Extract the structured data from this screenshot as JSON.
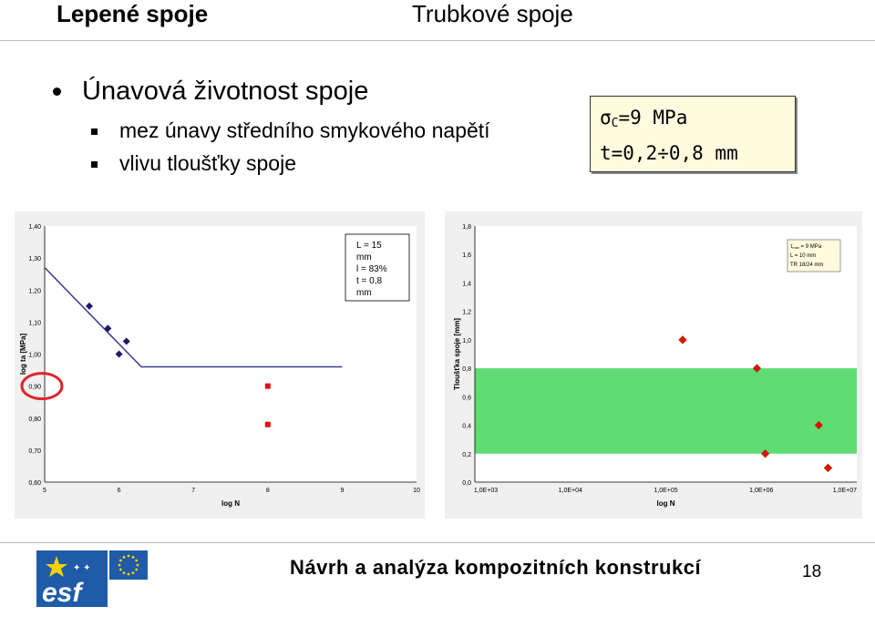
{
  "header": {
    "left": "Lepené spoje",
    "right": "Trubkové spoje"
  },
  "bullet": {
    "main": "Únavová životnost spoje",
    "subs": [
      "mez únavy středního smykového napětí",
      "vlivu tloušťky spoje"
    ]
  },
  "infobox": {
    "sigma": "σ",
    "sub": "C",
    "line1_rest": "=9 MPa",
    "line2": "t=0,2÷0,8 mm"
  },
  "chart_data": [
    {
      "type": "scatter",
      "xlabel": "log N",
      "ylabel": "log ta [MPa]",
      "xlim": [
        5,
        10
      ],
      "ylim": [
        0.6,
        1.4
      ],
      "x_ticks": [
        "5",
        "6",
        "7",
        "8",
        "9",
        "10"
      ],
      "y_ticks": [
        "0,60",
        "0,70",
        "0,80",
        "0,90",
        "1,00",
        "1,10",
        "1,20",
        "1,30",
        "1,40"
      ],
      "annotation": [
        "L = 15",
        "mm",
        "l = 83%",
        "t = 0,8",
        "mm"
      ],
      "fit_line": {
        "x": [
          5.0,
          6.3,
          6.35,
          9.0
        ],
        "y": [
          1.27,
          0.96,
          0.96,
          0.96
        ],
        "color": "#3b3b8f"
      },
      "series": [
        {
          "marker": "diamond",
          "color": "#1a1a66",
          "x": [
            5.6,
            5.85,
            6.0,
            6.1
          ],
          "y": [
            1.15,
            1.08,
            1.0,
            1.04
          ]
        },
        {
          "marker": "square",
          "color": "#dd1111",
          "x": [
            8.0,
            8.0
          ],
          "y": [
            0.9,
            0.78
          ]
        }
      ],
      "highlight": {
        "target": "y-tick 0,90",
        "color": "#e0252a"
      }
    },
    {
      "type": "scatter",
      "xlabel": "log N",
      "ylabel": "Tloušťka spoje [mm]",
      "x_scale": "log",
      "xlim": [
        1000,
        10000000
      ],
      "ylim": [
        0,
        1.8
      ],
      "x_ticks": [
        "1,0E+03",
        "1,0E+04",
        "1,0E+05",
        "1,0E+06",
        "1,0E+07"
      ],
      "y_ticks": [
        "0,0",
        "0,2",
        "0,4",
        "0,6",
        "0,8",
        "1,0",
        "1,2",
        "1,4",
        "1,6",
        "1,8"
      ],
      "band": {
        "x": [
          1000,
          10000000
        ],
        "y": [
          0.2,
          0.8
        ],
        "color": "#5fdc73"
      },
      "legend": {
        "tau": "τ",
        "tau_sub": "max",
        "lines": [
          " = 9 MPa",
          "L = 10 mm",
          "TR 18/24 mm"
        ]
      },
      "series": [
        {
          "marker": "diamond",
          "color": "#dd1111",
          "x": [
            150000,
            900000,
            1100000,
            5000000,
            4000000
          ],
          "y": [
            1.0,
            0.8,
            0.2,
            0.1,
            0.4
          ]
        }
      ]
    }
  ],
  "footer": {
    "title": "Návrh a analýza kompozitních konstrukcí",
    "page": "18"
  },
  "logos": {
    "esf_text": "esf"
  },
  "colors": {
    "eu_blue": "#1f5ba8",
    "eu_star": "#f4d200",
    "esf_blue": "#1f5ba8"
  }
}
